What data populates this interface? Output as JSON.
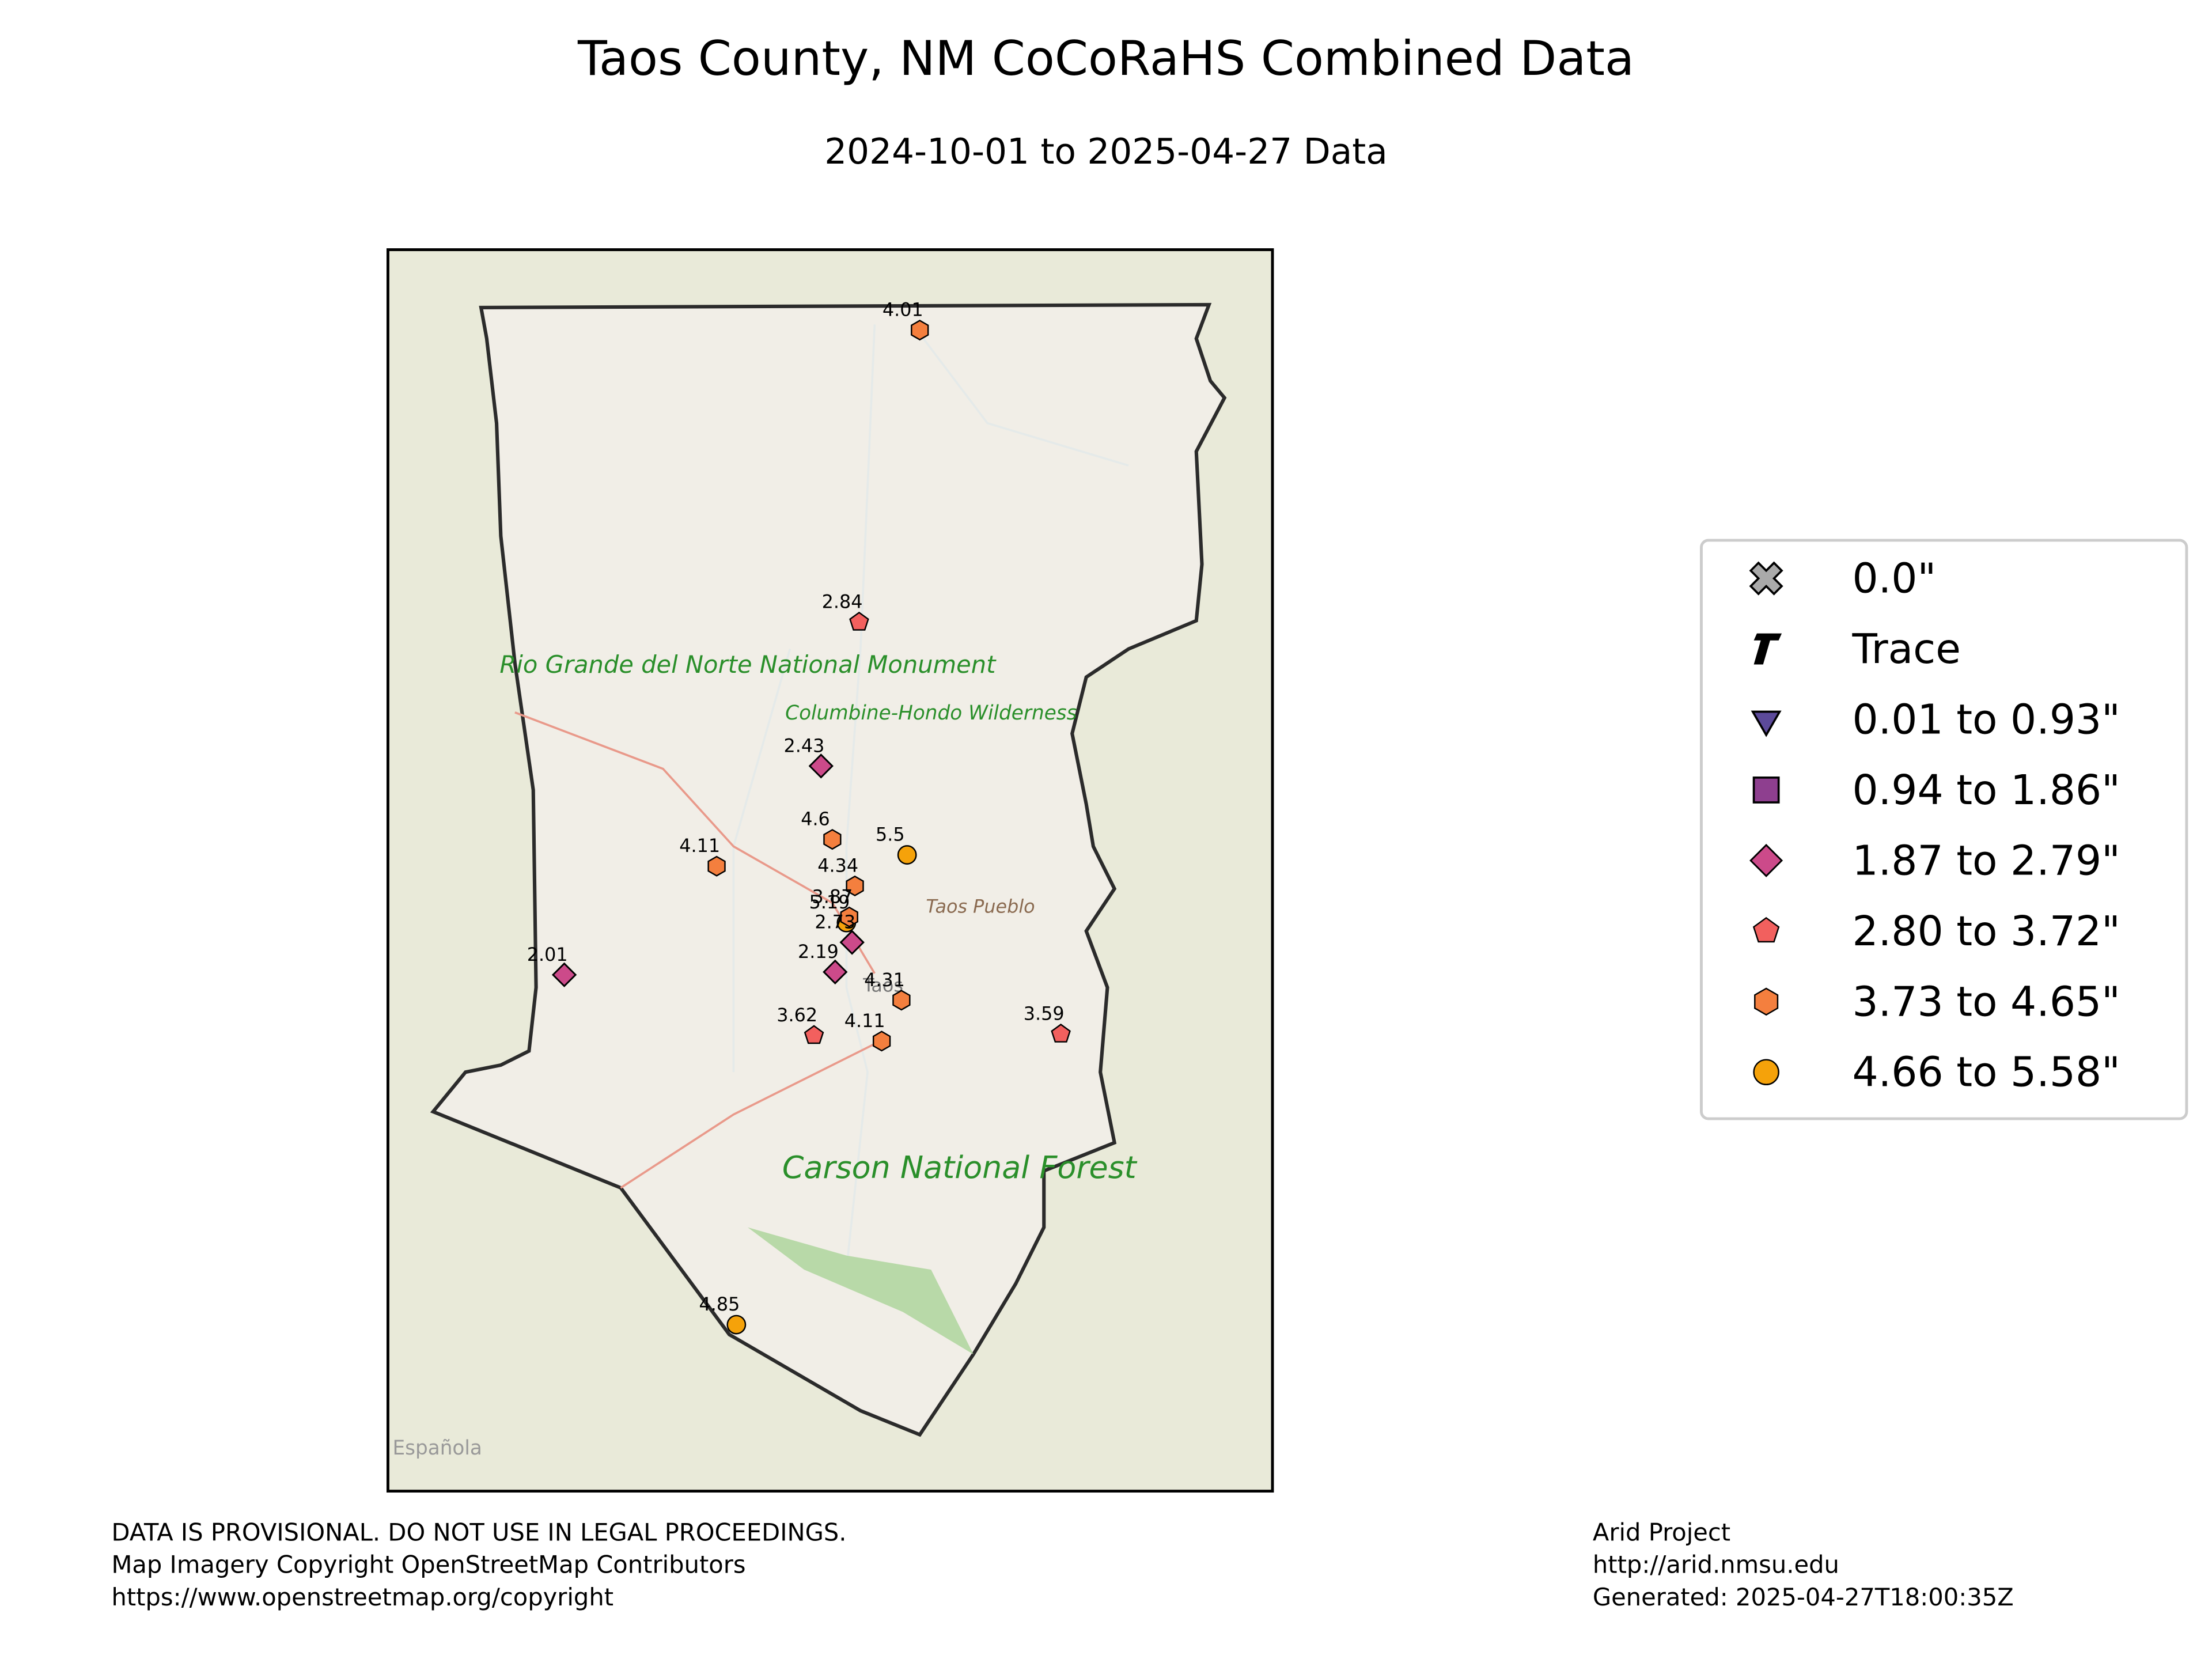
{
  "header": {
    "title": "Taos County, NM CoCoRaHS Combined Data",
    "subtitle": "2024-10-01 to 2025-04-27 Data"
  },
  "map": {
    "place_labels": [
      "Rio Grande del Norte National Monument",
      "Columbine-Hondo Wilderness",
      "Taos Pueblo",
      "Carson National Forest",
      "Española",
      "Taos"
    ],
    "stations": [
      "4.01",
      "2.84",
      "2.43",
      "4.6",
      "5.5",
      "4.11",
      "4.34",
      "5.19",
      "3.87",
      "2.73",
      "2.19",
      "4.31",
      "2.01",
      "3.62",
      "4.11",
      "3.59",
      "4.85"
    ]
  },
  "legend": [
    "0.0\"",
    "Trace",
    "0.01 to 0.93\"",
    "0.94 to 1.86\"",
    "1.87 to 2.79\"",
    "2.80 to 3.72\"",
    "3.73 to 4.65\"",
    "4.66 to 5.58\""
  ],
  "footer": {
    "left": [
      "DATA IS PROVISIONAL. DO NOT USE IN LEGAL PROCEEDINGS.",
      "Map Imagery Copyright OpenStreetMap Contributors",
      "https://www.openstreetmap.org/copyright"
    ],
    "right": [
      "Arid Project",
      "http://arid.nmsu.edu",
      "Generated: 2025-04-27T18:00:35Z"
    ]
  }
}
